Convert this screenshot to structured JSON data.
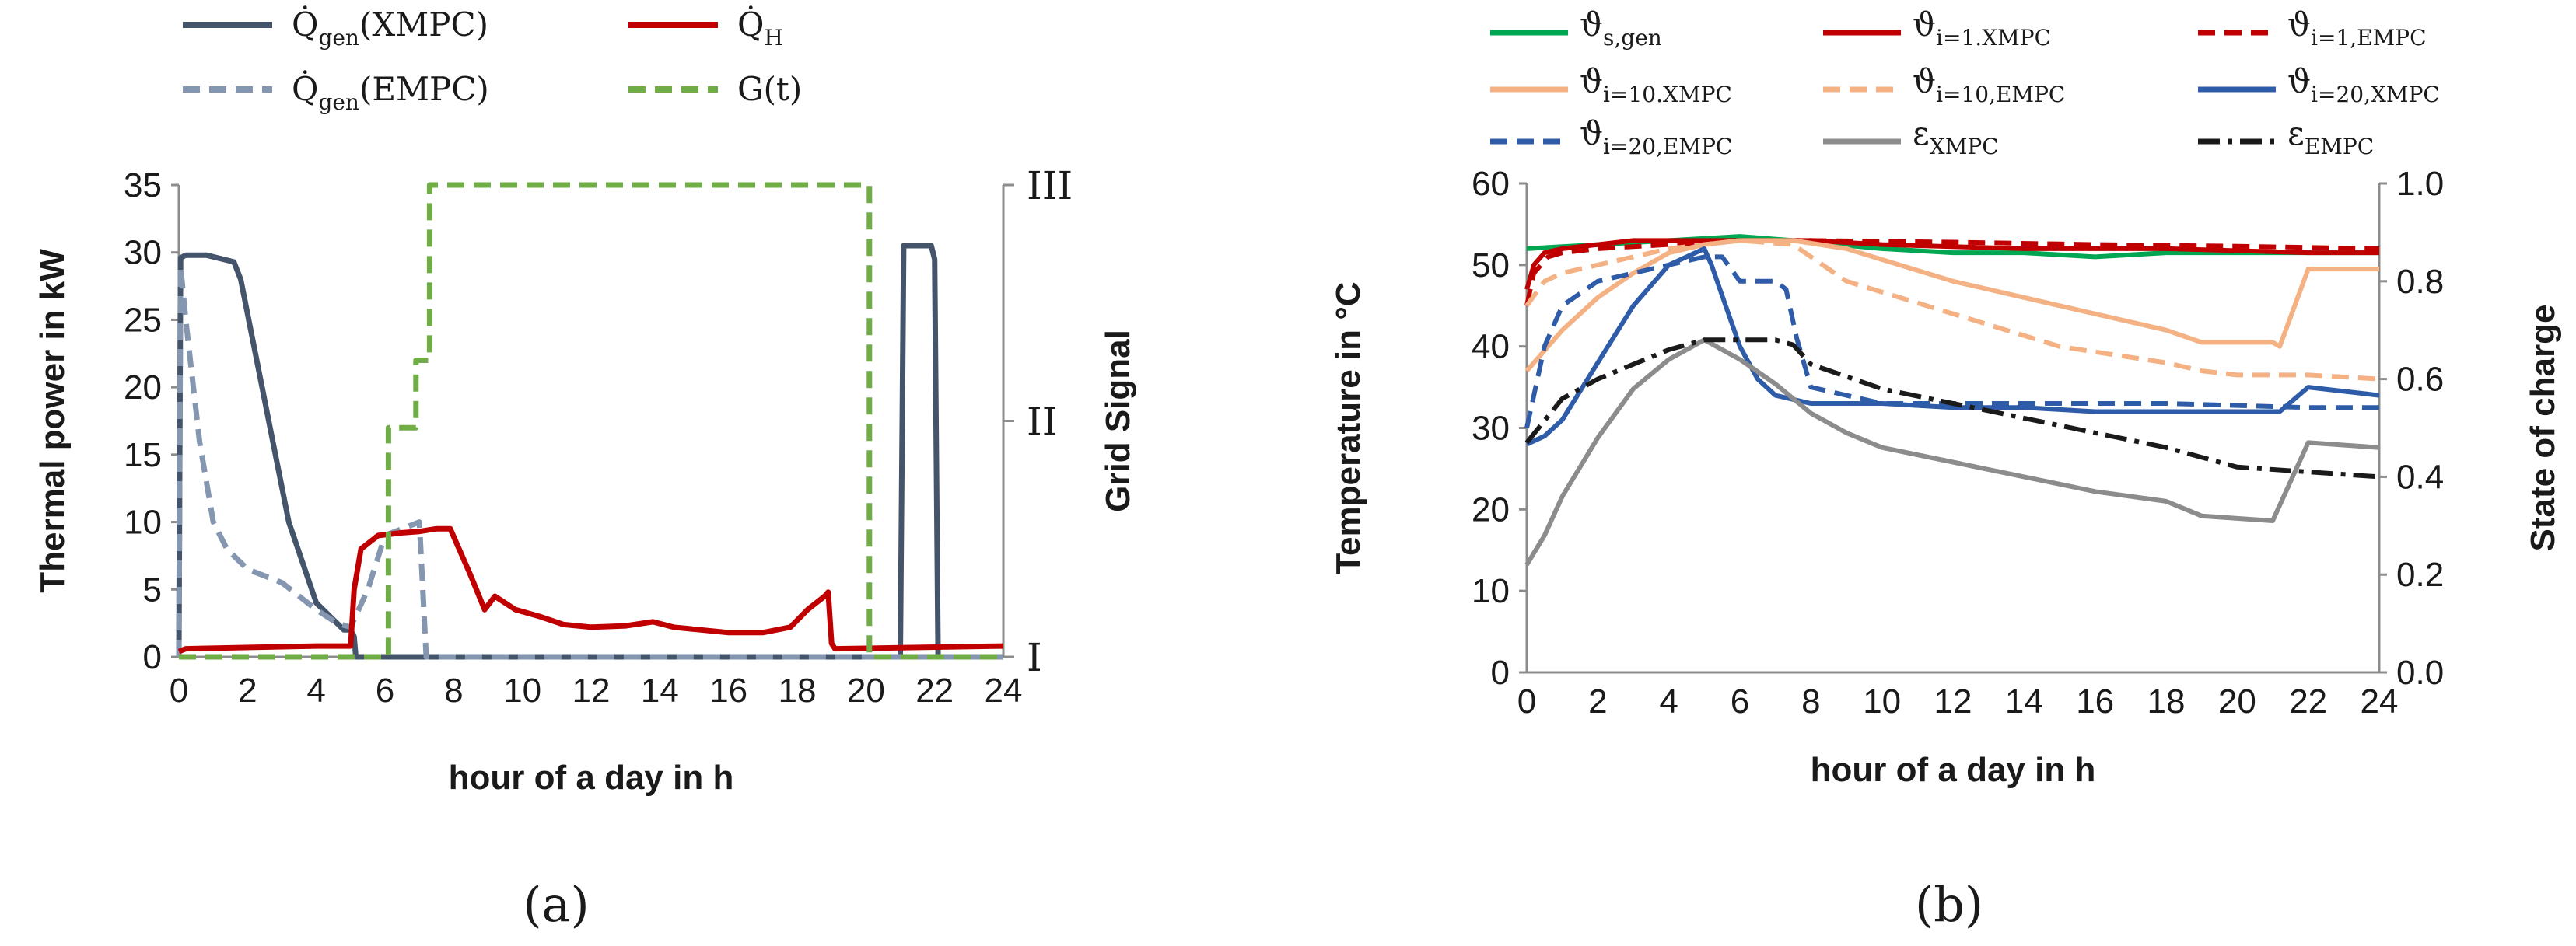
{
  "chart_data": [
    {
      "panel_label": "(a)",
      "type": "line",
      "xlabel": "hour of a day in h",
      "ylabel": "Thermal power in kW",
      "y2label": "Grid Signal",
      "xlim": [
        0,
        24
      ],
      "ylim": [
        0,
        35
      ],
      "xticks": [
        "0",
        "2",
        "4",
        "6",
        "8",
        "10",
        "12",
        "14",
        "16",
        "18",
        "20",
        "22",
        "24"
      ],
      "yticks": [
        "0",
        "5",
        "10",
        "15",
        "20",
        "25",
        "30",
        "35"
      ],
      "y2_levels": [
        "I",
        "II",
        "III"
      ],
      "series": [
        {
          "name": "Q̇gen(XMPC)",
          "legend_main": "Q̇",
          "legend_sub": "gen",
          "legend_tail": "(XMPC)",
          "color": "#44546a",
          "dash": "solid",
          "axis": "left",
          "x": [
            0,
            0.05,
            0.2,
            0.8,
            1.6,
            1.8,
            2.5,
            3.2,
            4.0,
            4.8,
            5.0,
            5.1,
            5.15,
            21.0,
            21.1,
            21.9,
            22.0,
            22.1,
            24
          ],
          "y": [
            0,
            29.6,
            29.8,
            29.8,
            29.3,
            28.0,
            19.0,
            10.0,
            4.0,
            2.0,
            2.0,
            1.5,
            0,
            0,
            30.5,
            30.5,
            29.5,
            0,
            0
          ]
        },
        {
          "name": "Q̇gen(EMPC)",
          "legend_main": "Q̇",
          "legend_sub": "gen",
          "legend_tail": "(EMPC)",
          "color": "#8496b0",
          "dash": "dashed",
          "axis": "left",
          "x": [
            0,
            0.05,
            0.2,
            0.6,
            1.0,
            1.4,
            2.0,
            3.0,
            4.0,
            4.6,
            5.0,
            5.5,
            6.0,
            6.5,
            7.0,
            7.1,
            7.2,
            24
          ],
          "y": [
            0,
            29,
            25,
            16,
            10,
            8,
            6.5,
            5.5,
            3.5,
            2.5,
            2.2,
            5,
            9,
            9.5,
            10,
            5,
            0,
            0
          ]
        },
        {
          "name": "Q̇H",
          "legend_main": "Q̇",
          "legend_sub": "H",
          "legend_tail": "",
          "color": "#c00000",
          "dash": "solid",
          "axis": "left",
          "x": [
            0,
            0.2,
            4,
            5.0,
            5.1,
            5.3,
            5.8,
            6.5,
            7.0,
            7.5,
            7.9,
            8.5,
            8.9,
            9.2,
            9.8,
            10.5,
            11.2,
            12,
            13,
            13.8,
            14.4,
            15.2,
            16,
            17,
            17.8,
            18.3,
            18.8,
            18.9,
            19.0,
            19.1,
            24
          ],
          "y": [
            0.4,
            0.6,
            0.8,
            0.8,
            5,
            8,
            9,
            9.2,
            9.3,
            9.5,
            9.5,
            6,
            3.5,
            4.5,
            3.5,
            3,
            2.4,
            2.2,
            2.3,
            2.6,
            2.2,
            2,
            1.8,
            1.8,
            2.2,
            3.5,
            4.5,
            4.8,
            1.0,
            0.6,
            0.8
          ]
        },
        {
          "name": "G(t)",
          "legend_main": "G(t)",
          "legend_sub": "",
          "legend_tail": "",
          "color": "#70ad47",
          "dash": "dashed",
          "axis": "grid",
          "x": [
            0,
            6.1,
            6.1,
            6.9,
            6.9,
            7.3,
            7.3,
            20.1,
            20.1,
            24
          ],
          "y": [
            0,
            0,
            17,
            17,
            22,
            22,
            35,
            35,
            0,
            0
          ]
        }
      ]
    },
    {
      "panel_label": "(b)",
      "type": "line",
      "xlabel": "hour of a day in h",
      "ylabel": "Temperature in °C",
      "y2label": "State of charge",
      "xlim": [
        0,
        24
      ],
      "ylim": [
        0,
        60
      ],
      "y2lim": [
        0,
        1
      ],
      "xticks": [
        "0",
        "2",
        "4",
        "6",
        "8",
        "10",
        "12",
        "14",
        "16",
        "18",
        "20",
        "22",
        "24"
      ],
      "yticks": [
        "0",
        "10",
        "20",
        "30",
        "40",
        "50",
        "60"
      ],
      "y2ticks": [
        "0.0",
        "0.2",
        "0.4",
        "0.6",
        "0.8",
        "1.0"
      ],
      "series": [
        {
          "name": "ϑs,gen",
          "legend_main": "ϑ",
          "legend_sub": "s,gen",
          "color": "#00a651",
          "dash": "solid",
          "axis": "left",
          "x": [
            0,
            2,
            4,
            6,
            7.5,
            10,
            12,
            14,
            16,
            18,
            20,
            22,
            24
          ],
          "y": [
            52,
            52.5,
            53,
            53.5,
            53,
            52,
            51.5,
            51.5,
            51,
            51.5,
            51.5,
            51.5,
            51.5
          ]
        },
        {
          "name": "ϑi=1.XMPC",
          "legend_main": "ϑ",
          "legend_sub": "i=1.XMPC",
          "color": "#c00000",
          "dash": "solid",
          "axis": "left",
          "x": [
            0,
            0.2,
            0.5,
            1,
            2,
            3,
            4,
            6,
            8,
            10,
            14,
            18,
            22,
            24
          ],
          "y": [
            47,
            50,
            51.5,
            52,
            52.5,
            53,
            53,
            53,
            53,
            52.5,
            52,
            52,
            51.5,
            51.5
          ]
        },
        {
          "name": "ϑi=1,EMPC",
          "legend_main": "ϑ",
          "legend_sub": "i=1,EMPC",
          "color": "#c00000",
          "dash": "dashed",
          "axis": "left",
          "x": [
            0,
            0.2,
            0.6,
            1,
            2,
            4,
            6,
            8,
            12,
            16,
            20,
            24
          ],
          "y": [
            45,
            49,
            51,
            51.5,
            52,
            52.5,
            53,
            53,
            52.8,
            52.5,
            52.3,
            52
          ]
        },
        {
          "name": "ϑi=10.XMPC",
          "legend_main": "ϑ",
          "legend_sub": "i=10.XMPC",
          "color": "#f4b183",
          "dash": "solid",
          "axis": "left",
          "x": [
            0,
            1,
            2,
            3,
            4,
            5,
            6,
            7.5,
            9,
            12,
            15,
            18,
            19,
            21,
            21.2,
            22,
            24
          ],
          "y": [
            37,
            42,
            46,
            49,
            51.5,
            52.5,
            53,
            53,
            52,
            48,
            45,
            42,
            40.5,
            40.5,
            40,
            49.5,
            49.5
          ]
        },
        {
          "name": "ϑi=10,EMPC",
          "legend_main": "ϑ",
          "legend_sub": "i=10,EMPC",
          "color": "#f4b183",
          "dash": "dashed",
          "axis": "left",
          "x": [
            0,
            0.5,
            1,
            2,
            3,
            4,
            5,
            6,
            7.5,
            9,
            12,
            15,
            18,
            19,
            20,
            22,
            24
          ],
          "y": [
            45,
            48,
            49,
            50,
            51,
            52,
            52.5,
            53,
            52.5,
            48,
            44,
            40,
            38,
            37,
            36.5,
            36.5,
            36
          ]
        },
        {
          "name": "ϑi=20,XMPC",
          "legend_main": "ϑ",
          "legend_sub": "i=20,XMPC",
          "color": "#2e5ca8",
          "dash": "solid",
          "axis": "left",
          "x": [
            0,
            0.5,
            1,
            2,
            3,
            4,
            4.5,
            5,
            5.2,
            5.6,
            6,
            6.5,
            7,
            7.5,
            8,
            10,
            12,
            14,
            16,
            18,
            20,
            21,
            21.2,
            22,
            24
          ],
          "y": [
            28,
            29,
            31,
            38,
            45,
            50,
            51,
            52,
            50,
            45,
            40,
            36,
            34,
            33.5,
            33,
            33,
            32.5,
            32.5,
            32,
            32,
            32,
            32,
            32,
            35,
            34
          ]
        },
        {
          "name": "ϑi=20,EMPC",
          "legend_main": "ϑ",
          "legend_sub": "i=20,EMPC",
          "color": "#2e5ca8",
          "dash": "dashed",
          "axis": "left",
          "x": [
            0,
            0.5,
            1,
            2,
            3,
            4,
            5,
            5.5,
            6,
            7,
            7.3,
            7.6,
            8,
            10,
            14,
            18,
            22,
            24
          ],
          "y": [
            30,
            40,
            45,
            48,
            49,
            50,
            51,
            51,
            48,
            48,
            47,
            41,
            35,
            33,
            33,
            33,
            32.5,
            32.5
          ]
        },
        {
          "name": "εXMPC",
          "legend_main": "ε",
          "legend_sub": "XMPC",
          "color": "#8c8c8c",
          "dash": "solid",
          "axis": "right",
          "x": [
            0,
            0.5,
            1,
            2,
            3,
            4,
            5,
            6,
            7,
            8,
            9,
            10,
            12,
            14,
            16,
            18,
            19,
            21,
            22,
            24
          ],
          "y": [
            0.22,
            0.28,
            0.36,
            0.48,
            0.58,
            0.64,
            0.68,
            0.64,
            0.59,
            0.53,
            0.49,
            0.46,
            0.43,
            0.4,
            0.37,
            0.35,
            0.32,
            0.31,
            0.47,
            0.46
          ]
        },
        {
          "name": "εEMPC",
          "legend_main": "ε",
          "legend_sub": "EMPC",
          "color": "#1a1a1a",
          "dash": "dashdot",
          "axis": "right",
          "x": [
            0,
            1,
            2,
            3,
            4,
            5,
            6,
            7,
            7.5,
            8,
            10,
            12,
            14,
            16,
            18,
            20,
            22,
            24
          ],
          "y": [
            0.47,
            0.56,
            0.6,
            0.63,
            0.66,
            0.68,
            0.68,
            0.68,
            0.67,
            0.63,
            0.58,
            0.55,
            0.52,
            0.49,
            0.46,
            0.42,
            0.41,
            0.4
          ]
        }
      ]
    }
  ]
}
